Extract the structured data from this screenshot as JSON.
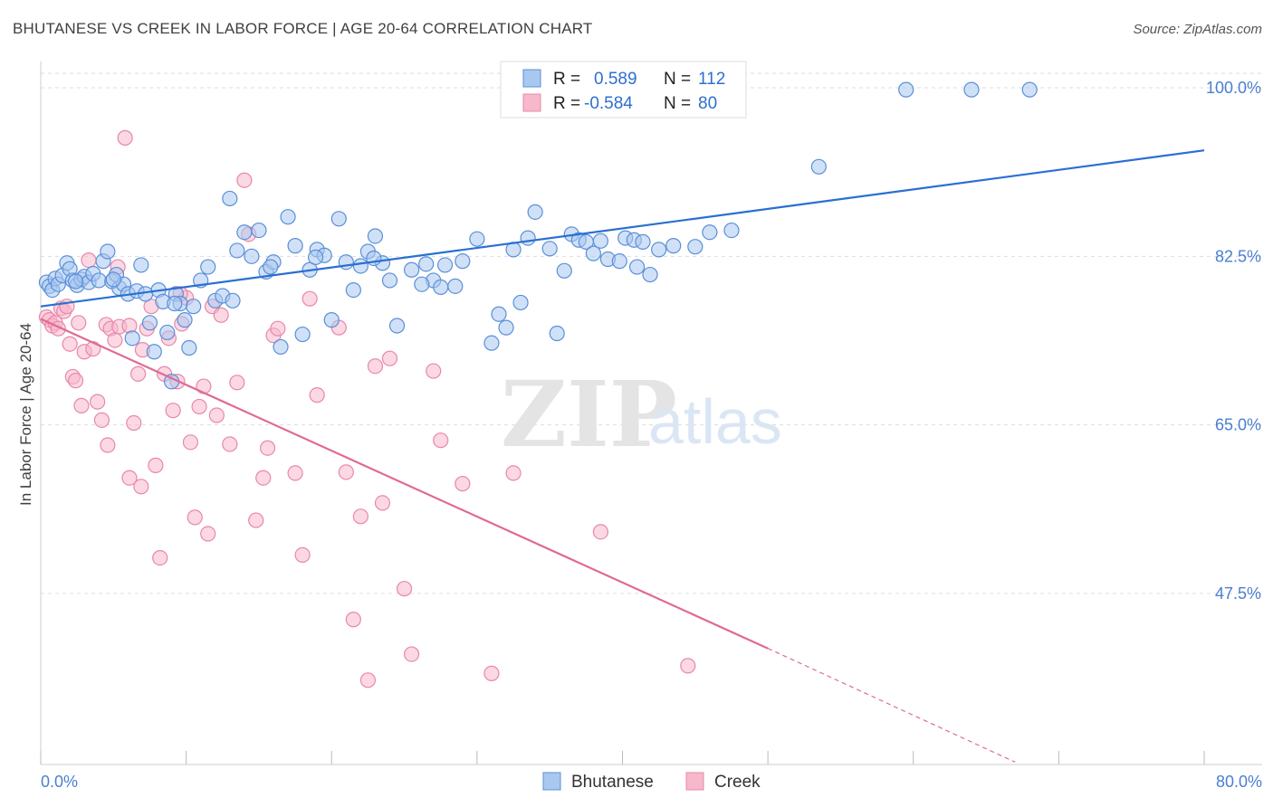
{
  "title": "BHUTANESE VS CREEK IN LABOR FORCE | AGE 20-64 CORRELATION CHART",
  "source": "Source: ZipAtlas.com",
  "watermark": {
    "zip": "ZIP",
    "atlas": "atlas"
  },
  "colors": {
    "bhutanese_fill": "#a9c8f0",
    "bhutanese_stroke": "#5b8fd8",
    "bhutanese_line": "#2a6fd2",
    "creek_fill": "#f7b8cc",
    "creek_stroke": "#e888a8",
    "creek_line": "#e06a96",
    "grid": "#dddddd",
    "tick_label": "#4a7fd0"
  },
  "legend": {
    "rows": [
      {
        "r_label": "R =",
        "r_value": "0.589",
        "n_label": "N =",
        "n_value": "112",
        "series": "Bhutanese"
      },
      {
        "r_label": "R =",
        "r_value": "-0.584",
        "n_label": "N =",
        "n_value": "80",
        "series": "Creek"
      }
    ]
  },
  "bottom_legend": [
    "Bhutanese",
    "Creek"
  ],
  "chart_data": {
    "type": "scatter",
    "title": "BHUTANESE VS CREEK IN LABOR FORCE | AGE 20-64 CORRELATION CHART",
    "xlabel": "",
    "ylabel": "In Labor Force | Age 20-64",
    "xlim": [
      0,
      80
    ],
    "ylim": [
      30,
      101.5
    ],
    "x_tick_labels": [
      "0.0%",
      "80.0%"
    ],
    "y_ticks": [
      47.5,
      65.0,
      82.5,
      100.0
    ],
    "y_tick_labels": [
      "47.5%",
      "65.0%",
      "82.5%",
      "100.0%"
    ],
    "grid": true,
    "legend_placement": "top-center",
    "series": [
      {
        "name": "Bhutanese",
        "r": 0.589,
        "n": 112,
        "trend": {
          "x0": 0,
          "y0": 77.3,
          "x1": 80,
          "y1": 93.5
        },
        "points": [
          [
            0.4,
            79.8
          ],
          [
            0.6,
            79.4
          ],
          [
            0.8,
            79.0
          ],
          [
            1.0,
            80.2
          ],
          [
            1.2,
            79.6
          ],
          [
            1.5,
            80.5
          ],
          [
            1.8,
            81.8
          ],
          [
            2.0,
            81.2
          ],
          [
            2.2,
            80.0
          ],
          [
            2.5,
            79.5
          ],
          [
            2.8,
            80.1
          ],
          [
            3.0,
            80.4
          ],
          [
            3.3,
            79.8
          ],
          [
            3.6,
            80.7
          ],
          [
            4.0,
            80.0
          ],
          [
            4.3,
            82.0
          ],
          [
            4.6,
            83.0
          ],
          [
            4.9,
            79.9
          ],
          [
            5.2,
            80.6
          ],
          [
            5.4,
            79.2
          ],
          [
            5.7,
            79.6
          ],
          [
            6.0,
            78.6
          ],
          [
            6.3,
            74.0
          ],
          [
            6.6,
            78.9
          ],
          [
            6.9,
            81.6
          ],
          [
            7.2,
            78.6
          ],
          [
            7.5,
            75.6
          ],
          [
            7.8,
            72.6
          ],
          [
            8.1,
            79.0
          ],
          [
            8.4,
            77.8
          ],
          [
            8.7,
            74.6
          ],
          [
            9.0,
            69.5
          ],
          [
            9.3,
            78.6
          ],
          [
            9.6,
            77.6
          ],
          [
            9.9,
            75.9
          ],
          [
            10.2,
            73.0
          ],
          [
            10.5,
            77.3
          ],
          [
            11.0,
            80.0
          ],
          [
            11.5,
            81.4
          ],
          [
            12.0,
            77.9
          ],
          [
            12.5,
            78.4
          ],
          [
            13.0,
            88.5
          ],
          [
            13.5,
            83.1
          ],
          [
            14.0,
            85.0
          ],
          [
            14.5,
            82.5
          ],
          [
            15.0,
            85.2
          ],
          [
            15.5,
            80.9
          ],
          [
            16.0,
            81.9
          ],
          [
            16.5,
            73.1
          ],
          [
            17.0,
            86.6
          ],
          [
            17.5,
            83.6
          ],
          [
            18.0,
            74.4
          ],
          [
            18.5,
            81.1
          ],
          [
            19.0,
            83.2
          ],
          [
            19.5,
            82.6
          ],
          [
            20.0,
            75.9
          ],
          [
            20.5,
            86.4
          ],
          [
            21.0,
            81.9
          ],
          [
            21.5,
            79.0
          ],
          [
            22.0,
            81.5
          ],
          [
            22.5,
            83.0
          ],
          [
            23.0,
            84.6
          ],
          [
            23.5,
            81.8
          ],
          [
            24.0,
            80.0
          ],
          [
            24.5,
            75.3
          ],
          [
            25.5,
            81.1
          ],
          [
            26.5,
            81.7
          ],
          [
            27.0,
            80.0
          ],
          [
            27.5,
            79.3
          ],
          [
            27.8,
            81.6
          ],
          [
            29.0,
            82.0
          ],
          [
            30.0,
            84.3
          ],
          [
            31.0,
            73.5
          ],
          [
            31.5,
            76.5
          ],
          [
            32.0,
            75.1
          ],
          [
            32.5,
            83.2
          ],
          [
            33.0,
            77.7
          ],
          [
            33.5,
            84.4
          ],
          [
            34.0,
            87.1
          ],
          [
            35.0,
            83.3
          ],
          [
            35.5,
            74.5
          ],
          [
            36.0,
            81.0
          ],
          [
            36.5,
            84.8
          ],
          [
            37.0,
            84.2
          ],
          [
            37.5,
            84.0
          ],
          [
            38.0,
            82.8
          ],
          [
            38.5,
            84.1
          ],
          [
            39.0,
            82.2
          ],
          [
            39.8,
            82.0
          ],
          [
            40.2,
            84.4
          ],
          [
            40.8,
            84.2
          ],
          [
            41.0,
            81.4
          ],
          [
            41.4,
            84.0
          ],
          [
            41.9,
            80.6
          ],
          [
            42.5,
            83.2
          ],
          [
            43.5,
            83.6
          ],
          [
            45.0,
            83.5
          ],
          [
            46.0,
            85.0
          ],
          [
            47.5,
            85.2
          ],
          [
            53.5,
            91.8
          ],
          [
            59.5,
            99.8
          ],
          [
            64.0,
            99.8
          ],
          [
            68.0,
            99.8
          ],
          [
            2.4,
            79.9
          ],
          [
            5.0,
            80.1
          ],
          [
            9.2,
            77.6
          ],
          [
            13.2,
            77.9
          ],
          [
            15.8,
            81.4
          ],
          [
            18.9,
            82.4
          ],
          [
            22.9,
            82.3
          ],
          [
            26.2,
            79.6
          ],
          [
            28.5,
            79.4
          ]
        ]
      },
      {
        "name": "Creek",
        "r": -0.584,
        "n": 80,
        "trend": {
          "x0": 0,
          "y0": 76.0,
          "x1": 50,
          "y1": 41.8,
          "dash_to_x": 67,
          "dash_to_y": 30.0
        },
        "points": [
          [
            0.4,
            76.2
          ],
          [
            0.6,
            75.9
          ],
          [
            0.8,
            75.3
          ],
          [
            1.0,
            75.6
          ],
          [
            1.2,
            75.0
          ],
          [
            1.4,
            77.1
          ],
          [
            1.6,
            76.8
          ],
          [
            1.8,
            77.3
          ],
          [
            2.0,
            73.4
          ],
          [
            2.2,
            70.0
          ],
          [
            2.4,
            69.6
          ],
          [
            2.6,
            75.6
          ],
          [
            2.8,
            67.0
          ],
          [
            3.0,
            72.6
          ],
          [
            3.3,
            82.1
          ],
          [
            3.6,
            72.9
          ],
          [
            3.9,
            67.4
          ],
          [
            4.2,
            65.5
          ],
          [
            4.5,
            75.4
          ],
          [
            4.8,
            75.0
          ],
          [
            5.1,
            73.8
          ],
          [
            5.4,
            75.2
          ],
          [
            5.8,
            94.8
          ],
          [
            6.1,
            75.3
          ],
          [
            6.4,
            65.2
          ],
          [
            6.7,
            70.3
          ],
          [
            7.0,
            72.8
          ],
          [
            7.3,
            75.0
          ],
          [
            7.6,
            77.3
          ],
          [
            7.9,
            60.8
          ],
          [
            8.2,
            51.2
          ],
          [
            8.5,
            70.3
          ],
          [
            8.8,
            74.0
          ],
          [
            9.1,
            66.5
          ],
          [
            9.4,
            69.5
          ],
          [
            9.7,
            75.5
          ],
          [
            10.0,
            78.2
          ],
          [
            10.3,
            63.2
          ],
          [
            10.6,
            55.4
          ],
          [
            10.9,
            66.9
          ],
          [
            11.2,
            69.0
          ],
          [
            11.5,
            53.7
          ],
          [
            11.8,
            77.3
          ],
          [
            12.1,
            66.0
          ],
          [
            12.4,
            76.4
          ],
          [
            13.0,
            63.0
          ],
          [
            13.5,
            69.4
          ],
          [
            14.0,
            90.4
          ],
          [
            14.3,
            84.8
          ],
          [
            14.8,
            55.1
          ],
          [
            15.3,
            59.5
          ],
          [
            15.6,
            62.6
          ],
          [
            16.0,
            74.3
          ],
          [
            16.3,
            75.0
          ],
          [
            17.5,
            60.0
          ],
          [
            18.0,
            51.5
          ],
          [
            18.5,
            78.1
          ],
          [
            19.0,
            68.1
          ],
          [
            20.5,
            75.1
          ],
          [
            21.0,
            60.1
          ],
          [
            21.5,
            44.8
          ],
          [
            22.0,
            55.5
          ],
          [
            22.5,
            38.5
          ],
          [
            23.0,
            71.1
          ],
          [
            23.5,
            56.9
          ],
          [
            24.0,
            71.9
          ],
          [
            25.0,
            48.0
          ],
          [
            25.5,
            41.2
          ],
          [
            27.0,
            70.6
          ],
          [
            27.5,
            63.4
          ],
          [
            29.0,
            58.9
          ],
          [
            31.0,
            39.2
          ],
          [
            32.5,
            60.0
          ],
          [
            38.5,
            53.9
          ],
          [
            44.5,
            40.0
          ],
          [
            4.6,
            62.9
          ],
          [
            6.9,
            58.6
          ],
          [
            9.6,
            78.6
          ],
          [
            6.1,
            59.5
          ],
          [
            5.3,
            81.4
          ]
        ]
      }
    ]
  }
}
